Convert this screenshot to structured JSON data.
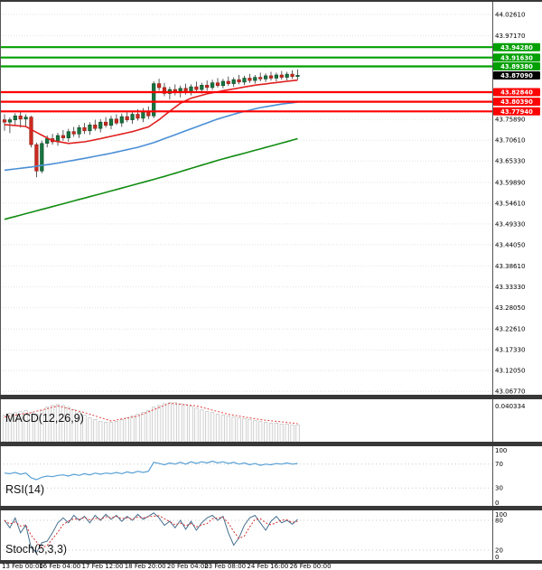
{
  "chart_data": {
    "type": "candlestick",
    "x_axis": {
      "labels": [
        [
          0,
          "13 Feb 00:00"
        ],
        [
          7,
          "16 Feb 04:00"
        ],
        [
          15,
          "17 Feb 12:00"
        ],
        [
          23,
          "18 Feb 20:00"
        ],
        [
          31,
          "20 Feb 04:00"
        ],
        [
          38,
          "23 Feb 08:00"
        ],
        [
          46,
          "24 Feb 16:00"
        ],
        [
          54,
          "26 Feb 00:00"
        ]
      ]
    },
    "y_axis": {
      "range": [
        43.059,
        44.058
      ],
      "decimals": 5,
      "ticks": [
        44.0261,
        43.9717,
        43.7589,
        43.7061,
        43.6533,
        43.5989,
        43.5461,
        43.4933,
        43.4405,
        43.3861,
        43.3333,
        43.2805,
        43.2261,
        43.1733,
        43.1205,
        43.0677
      ]
    },
    "levels": {
      "resistance": {
        "color": "#00a000",
        "values": [
          43.9428,
          43.9163,
          43.8938
        ]
      },
      "support": {
        "color": "#fe0000",
        "values": [
          43.8284,
          43.8039,
          43.7794
        ]
      },
      "current": {
        "color": "#000000",
        "value": 43.8709
      }
    },
    "candles": [
      [
        43.758,
        43.772,
        43.73,
        43.752
      ],
      [
        43.752,
        43.764,
        43.724,
        43.758
      ],
      [
        43.758,
        43.775,
        43.745,
        43.768
      ],
      [
        43.768,
        43.778,
        43.738,
        43.76
      ],
      [
        43.76,
        43.772,
        43.742,
        43.765
      ],
      [
        43.765,
        43.768,
        43.688,
        43.695
      ],
      [
        43.695,
        43.7,
        43.612,
        43.628
      ],
      [
        43.628,
        43.705,
        43.622,
        43.698
      ],
      [
        43.698,
        43.718,
        43.688,
        43.71
      ],
      [
        43.71,
        43.722,
        43.695,
        43.702
      ],
      [
        43.702,
        43.725,
        43.692,
        43.718
      ],
      [
        43.718,
        43.732,
        43.705,
        43.712
      ],
      [
        43.712,
        43.735,
        43.702,
        43.728
      ],
      [
        43.728,
        43.74,
        43.715,
        43.722
      ],
      [
        43.722,
        43.745,
        43.712,
        43.738
      ],
      [
        43.738,
        43.75,
        43.722,
        43.73
      ],
      [
        43.73,
        43.752,
        43.72,
        43.745
      ],
      [
        43.745,
        43.758,
        43.73,
        43.736
      ],
      [
        43.736,
        43.76,
        43.726,
        43.752
      ],
      [
        43.752,
        43.765,
        43.738,
        43.744
      ],
      [
        43.744,
        43.768,
        43.734,
        43.76
      ],
      [
        43.76,
        43.772,
        43.745,
        43.75
      ],
      [
        43.75,
        43.774,
        43.74,
        43.766
      ],
      [
        43.766,
        43.778,
        43.752,
        43.758
      ],
      [
        43.758,
        43.78,
        43.748,
        43.772
      ],
      [
        43.772,
        43.785,
        43.756,
        43.762
      ],
      [
        43.762,
        43.788,
        43.752,
        43.778
      ],
      [
        43.778,
        43.792,
        43.76,
        43.768
      ],
      [
        43.768,
        43.856,
        43.762,
        43.85
      ],
      [
        43.85,
        43.862,
        43.832,
        43.84
      ],
      [
        43.84,
        43.852,
        43.818,
        43.825
      ],
      [
        43.825,
        43.842,
        43.81,
        43.835
      ],
      [
        43.835,
        43.848,
        43.82,
        43.828
      ],
      [
        43.828,
        43.845,
        43.815,
        43.838
      ],
      [
        43.838,
        43.85,
        43.822,
        43.83
      ],
      [
        43.83,
        43.848,
        43.82,
        43.842
      ],
      [
        43.842,
        43.855,
        43.828,
        43.835
      ],
      [
        43.835,
        43.852,
        43.825,
        43.846
      ],
      [
        43.846,
        43.858,
        43.832,
        43.84
      ],
      [
        43.84,
        43.86,
        43.834,
        43.852
      ],
      [
        43.852,
        43.864,
        43.84,
        43.845
      ],
      [
        43.845,
        43.862,
        43.838,
        43.856
      ],
      [
        43.856,
        43.868,
        43.844,
        43.85
      ],
      [
        43.85,
        43.866,
        43.842,
        43.86
      ],
      [
        43.86,
        43.872,
        43.848,
        43.854
      ],
      [
        43.854,
        43.87,
        43.846,
        43.864
      ],
      [
        43.864,
        43.875,
        43.852,
        43.858
      ],
      [
        43.858,
        43.872,
        43.85,
        43.866
      ],
      [
        43.866,
        43.878,
        43.856,
        43.862
      ],
      [
        43.862,
        43.876,
        43.854,
        43.87
      ],
      [
        43.87,
        43.88,
        43.858,
        43.864
      ],
      [
        43.864,
        43.878,
        43.856,
        43.872
      ],
      [
        43.872,
        43.882,
        43.86,
        43.866
      ],
      [
        43.866,
        43.88,
        43.858,
        43.874
      ],
      [
        43.874,
        43.884,
        43.862,
        43.868
      ],
      [
        43.868,
        43.886,
        43.86,
        43.871
      ]
    ],
    "moving_averages": [
      {
        "name": "ma-fast",
        "color": "#e02020",
        "points": [
          [
            0,
            43.746
          ],
          [
            4,
            43.741
          ],
          [
            6,
            43.726
          ],
          [
            9,
            43.705
          ],
          [
            12,
            43.698
          ],
          [
            15,
            43.702
          ],
          [
            18,
            43.71
          ],
          [
            21,
            43.719
          ],
          [
            24,
            43.728
          ],
          [
            27,
            43.74
          ],
          [
            29,
            43.758
          ],
          [
            31,
            43.78
          ],
          [
            33,
            43.8
          ],
          [
            35,
            43.813
          ],
          [
            38,
            43.824
          ],
          [
            41,
            43.832
          ],
          [
            44,
            43.839
          ],
          [
            47,
            43.846
          ],
          [
            50,
            43.851
          ],
          [
            53,
            43.856
          ],
          [
            55,
            43.859
          ]
        ]
      },
      {
        "name": "ma-mid",
        "color": "#4b8fd5",
        "points": [
          [
            0,
            43.63
          ],
          [
            5,
            43.638
          ],
          [
            10,
            43.648
          ],
          [
            15,
            43.66
          ],
          [
            20,
            43.673
          ],
          [
            25,
            43.688
          ],
          [
            28,
            43.7
          ],
          [
            32,
            43.72
          ],
          [
            36,
            43.74
          ],
          [
            40,
            43.76
          ],
          [
            44,
            43.776
          ],
          [
            48,
            43.789
          ],
          [
            52,
            43.798
          ],
          [
            55,
            43.803
          ]
        ]
      },
      {
        "name": "ma-slow",
        "color": "#118c11",
        "points": [
          [
            0,
            43.505
          ],
          [
            10,
            43.541
          ],
          [
            20,
            43.577
          ],
          [
            30,
            43.614
          ],
          [
            40,
            43.655
          ],
          [
            48,
            43.684
          ],
          [
            55,
            43.71
          ]
        ]
      }
    ],
    "indicators": {
      "macd": {
        "label": "MACD(12,26,9)",
        "range": [
          0,
          0.048
        ],
        "axis_value": 0.040334,
        "histogram": [
          0.03,
          0.032,
          0.033,
          0.034,
          0.035,
          0.033,
          0.031,
          0.035,
          0.039,
          0.041,
          0.042,
          0.041,
          0.039,
          0.036,
          0.033,
          0.03,
          0.027,
          0.025,
          0.023,
          0.022,
          0.022,
          0.023,
          0.025,
          0.027,
          0.029,
          0.031,
          0.033,
          0.035,
          0.039,
          0.041,
          0.043,
          0.044,
          0.044,
          0.043,
          0.042,
          0.04,
          0.038,
          0.036,
          0.034,
          0.033,
          0.031,
          0.03,
          0.029,
          0.028,
          0.027,
          0.026,
          0.025,
          0.024,
          0.023,
          0.022,
          0.021,
          0.021,
          0.02,
          0.02,
          0.019,
          0.019
        ],
        "signal_points": [
          [
            0,
            0.028
          ],
          [
            5,
            0.033
          ],
          [
            10,
            0.0404
          ],
          [
            15,
            0.033
          ],
          [
            20,
            0.0235
          ],
          [
            25,
            0.029
          ],
          [
            31,
            0.0435
          ],
          [
            36,
            0.0405
          ],
          [
            42,
            0.031
          ],
          [
            48,
            0.025
          ],
          [
            55,
            0.0205
          ]
        ]
      },
      "rsi": {
        "label": "RSI(14)",
        "range": [
          0,
          100
        ],
        "axis_ticks": [
          100,
          70,
          30,
          0
        ],
        "level_lines": [
          70,
          30
        ],
        "values": [
          55,
          54,
          56,
          53,
          55,
          47,
          44,
          48,
          50,
          49,
          51,
          52,
          50,
          53,
          51,
          54,
          52,
          55,
          53,
          55,
          54,
          56,
          54,
          57,
          55,
          58,
          56,
          58,
          73,
          71,
          69,
          72,
          70,
          73,
          70,
          74,
          71,
          74,
          72,
          75,
          72,
          74,
          71,
          73,
          70,
          72,
          69,
          71,
          68,
          70,
          69,
          71,
          70,
          72,
          70,
          71
        ]
      },
      "stoch": {
        "label": "Stoch(5,3,3)",
        "range": [
          0,
          100
        ],
        "axis_ticks": [
          100,
          80,
          20,
          0
        ],
        "level_lines": [
          80,
          20
        ],
        "k_values": [
          80,
          65,
          85,
          55,
          70,
          25,
          15,
          35,
          38,
          55,
          75,
          85,
          75,
          90,
          80,
          88,
          75,
          90,
          80,
          92,
          82,
          90,
          78,
          88,
          80,
          92,
          82,
          88,
          95,
          85,
          70,
          78,
          65,
          80,
          62,
          78,
          60,
          75,
          85,
          90,
          80,
          88,
          55,
          30,
          45,
          70,
          85,
          90,
          75,
          60,
          78,
          88,
          75,
          80,
          72,
          82
        ]
      }
    }
  },
  "colors": {
    "background": "#ffffff",
    "candle_up": "#17753f",
    "candle_up_border": "#0d4a27",
    "candle_down": "#cc2a1f",
    "candle_down_border": "#8f1d15",
    "wick": "#333333",
    "rsi_line": "#58a0d4",
    "stoch_k": "#46708e",
    "stoch_d": "#d03030",
    "macd_bar_fill": "#fafafa",
    "macd_bar_stroke": "#b8b8b8",
    "macd_signal": "#e04040",
    "separator": "#383838",
    "axis_text": "#000000",
    "grid": "#e4e4e4"
  }
}
